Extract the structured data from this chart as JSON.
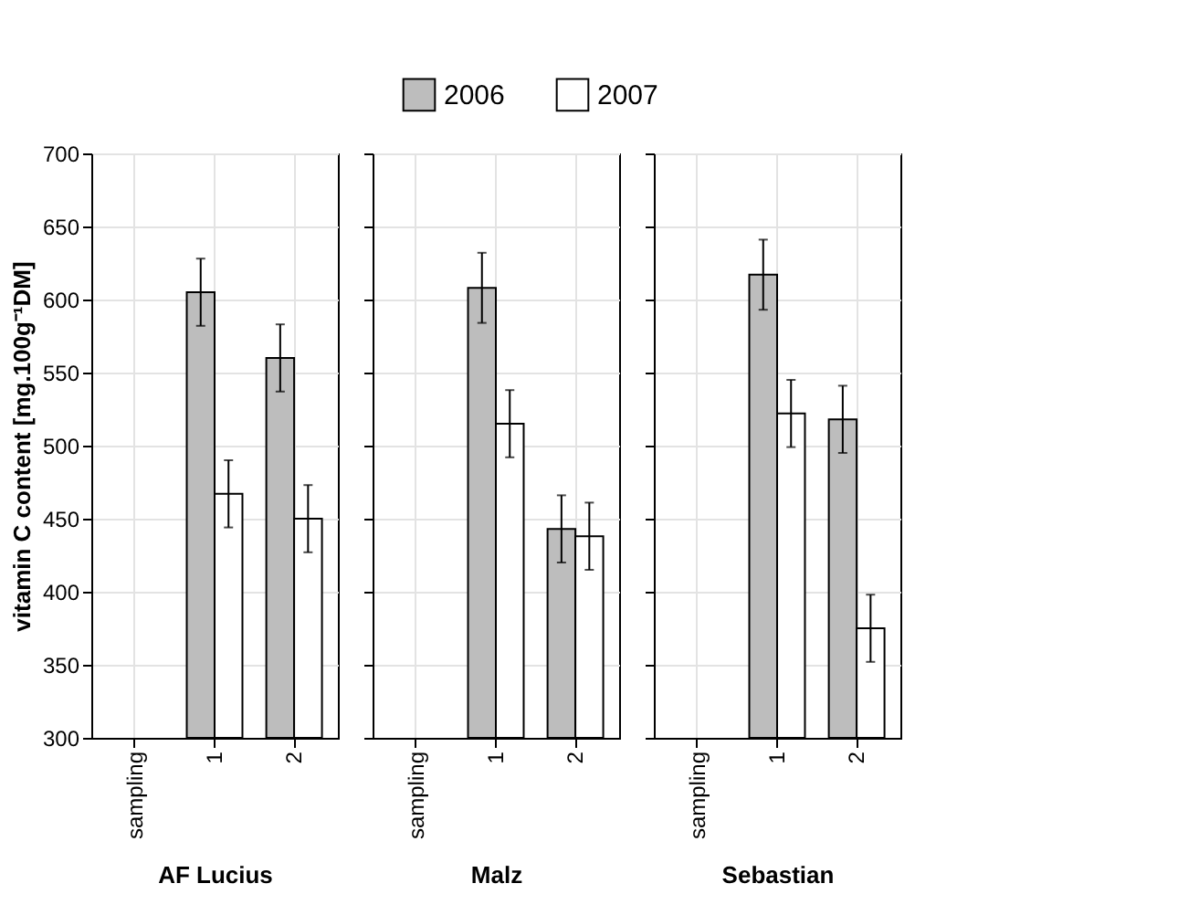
{
  "chart_data": [
    {
      "type": "bar",
      "xlabel": "AF Lucius",
      "ylabel": "vitamin C content [mg.100g⁻¹DM]",
      "categories": [
        "sampling",
        "1",
        "2"
      ],
      "ylim": [
        300,
        700
      ],
      "yticks": [
        300,
        350,
        400,
        450,
        500,
        550,
        600,
        650,
        700
      ],
      "grid": true,
      "legend": "top",
      "series": [
        {
          "name": "2006",
          "color": "#bdbdbd",
          "values": [
            null,
            605,
            560
          ],
          "errors": [
            null,
            23,
            23
          ]
        },
        {
          "name": "2007",
          "color": "#ffffff",
          "values": [
            null,
            467,
            450
          ],
          "errors": [
            null,
            23,
            23
          ]
        }
      ]
    },
    {
      "type": "bar",
      "xlabel": "Malz",
      "categories": [
        "sampling",
        "1",
        "2"
      ],
      "ylim": [
        300,
        700
      ],
      "yticks": [
        300,
        350,
        400,
        450,
        500,
        550,
        600,
        650,
        700
      ],
      "grid": true,
      "tick_labels": "x",
      "series": [
        {
          "color": "#bdbdbd",
          "values": [
            null,
            608,
            443
          ],
          "errors": [
            null,
            24,
            23
          ]
        },
        {
          "color": "#ffffff",
          "values": [
            null,
            515,
            438
          ],
          "errors": [
            null,
            23,
            23
          ]
        }
      ]
    },
    {
      "type": "bar",
      "xlabel": "Sebastian",
      "categories": [
        "sampling",
        "1",
        "2"
      ],
      "ylim": [
        300,
        700
      ],
      "yticks": [
        300,
        350,
        400,
        450,
        500,
        550,
        600,
        650,
        700
      ],
      "grid": true,
      "tick_labels": "x",
      "series": [
        {
          "color": "#bdbdbd",
          "values": [
            null,
            617,
            518
          ],
          "errors": [
            null,
            24,
            23
          ]
        },
        {
          "color": "#ffffff",
          "values": [
            null,
            522,
            375
          ],
          "errors": [
            null,
            23,
            23
          ]
        }
      ]
    }
  ]
}
